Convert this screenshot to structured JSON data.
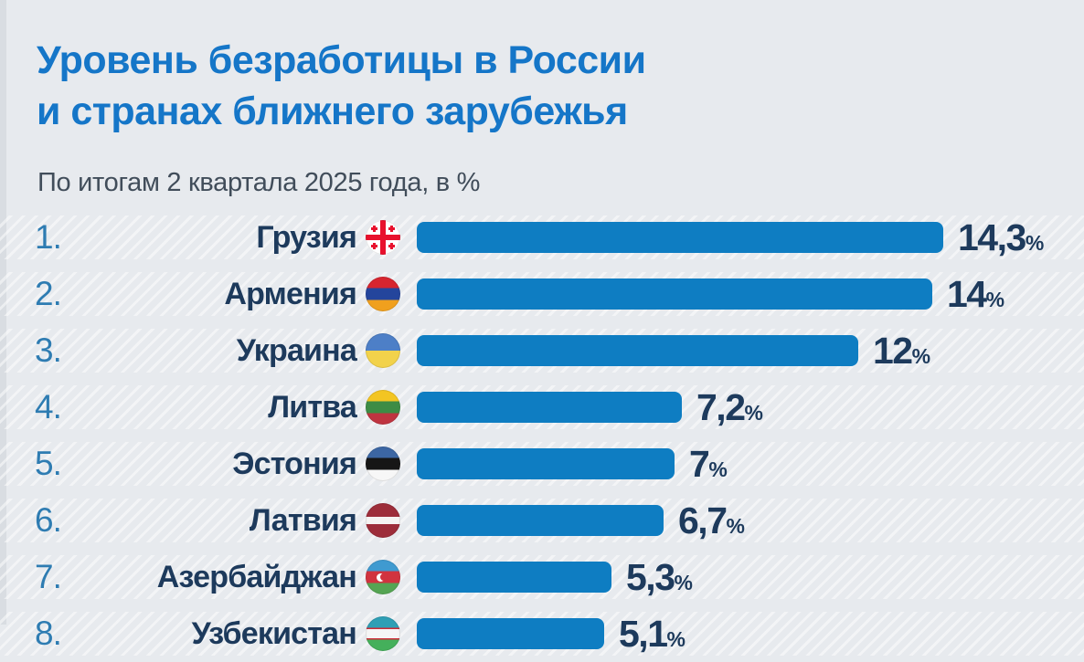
{
  "page": {
    "background": "#e7eaee",
    "left_edge_strip": "#d9dde2",
    "title_blue": "#1576c8",
    "bar_color": "#0e7dc2",
    "text_navy": "#1d3a5c",
    "rank_blue": "#2e7cb2",
    "subtitle_gray": "#414d5a"
  },
  "header": {
    "title_line1": "Уровень безработицы в России",
    "title_line2": "и странах ближнего зарубежья",
    "subtitle": "По итогам 2 квартала 2025 года, в %"
  },
  "chart_data": {
    "type": "bar",
    "orientation": "horizontal",
    "title": "Уровень безработицы в России и странах ближнего зарубежья",
    "subtitle": "По итогам 2 квартала 2025 года, в %",
    "unit": "%",
    "xlim": [
      0,
      14.3
    ],
    "max_value": 14.3,
    "grid": false,
    "legend": false,
    "categories": [
      "Грузия",
      "Армения",
      "Украина",
      "Литва",
      "Эстония",
      "Латвия",
      "Азербайджан",
      "Узбекистан"
    ],
    "values": [
      14.3,
      14,
      12,
      7.2,
      7,
      6.7,
      5.3,
      5.1
    ],
    "rows": [
      {
        "rank": "1.",
        "country": "Грузия",
        "value": 14.3,
        "value_label": "14,3",
        "flag": "georgia"
      },
      {
        "rank": "2.",
        "country": "Армения",
        "value": 14,
        "value_label": "14",
        "flag": "armenia"
      },
      {
        "rank": "3.",
        "country": "Украина",
        "value": 12,
        "value_label": "12",
        "flag": "ukraine"
      },
      {
        "rank": "4.",
        "country": "Литва",
        "value": 7.2,
        "value_label": "7,2",
        "flag": "lithuania"
      },
      {
        "rank": "5.",
        "country": "Эстония",
        "value": 7,
        "value_label": "7",
        "flag": "estonia"
      },
      {
        "rank": "6.",
        "country": "Латвия",
        "value": 6.7,
        "value_label": "6,7",
        "flag": "latvia"
      },
      {
        "rank": "7.",
        "country": "Азербайджан",
        "value": 5.3,
        "value_label": "5,3",
        "flag": "azerbaijan"
      },
      {
        "rank": "8.",
        "country": "Узбекистан",
        "value": 5.1,
        "value_label": "5,1",
        "flag": "uzbekistan"
      }
    ]
  }
}
